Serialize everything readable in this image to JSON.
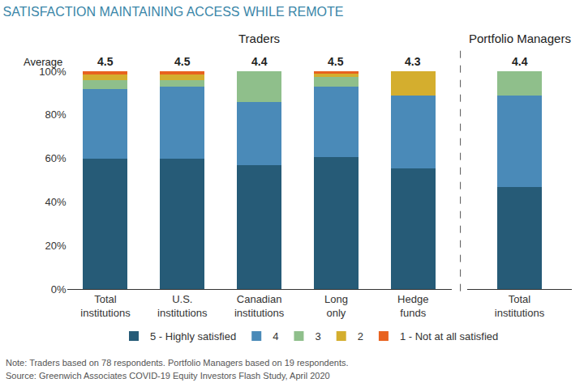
{
  "chart_data": [
    {
      "type": "bar",
      "title": "SATISFACTION MAINTAINING ACCESS WHILE REMOTE",
      "subtitle": "Traders",
      "categories": [
        "Total institutions",
        "U.S. institutions",
        "Canadian institutions",
        "Long only",
        "Hedge funds"
      ],
      "series": [
        {
          "name": "5 - Highly satisfied",
          "color": "#265b77",
          "values": [
            60,
            60,
            57,
            60.5,
            55.5
          ]
        },
        {
          "name": "4",
          "color": "#4a8ab8",
          "values": [
            32,
            33,
            29,
            32.5,
            33.5
          ]
        },
        {
          "name": "3",
          "color": "#8fbf8b",
          "values": [
            4,
            3,
            14,
            4.5,
            0
          ]
        },
        {
          "name": "2",
          "color": "#d4ae2e",
          "values": [
            2.5,
            2.5,
            0,
            1.5,
            11
          ]
        },
        {
          "name": "1 - Not at all satisfied",
          "color": "#e8621f",
          "values": [
            1.5,
            1.5,
            0,
            1,
            0
          ]
        }
      ],
      "averages_label": "Average",
      "averages": [
        4.5,
        4.5,
        4.4,
        4.5,
        4.3
      ],
      "ylim": [
        0,
        100
      ],
      "yticks": [
        {
          "value": 0,
          "label": "0%"
        },
        {
          "value": 20,
          "label": "20%"
        },
        {
          "value": 40,
          "label": "40%"
        },
        {
          "value": 60,
          "label": "60%"
        },
        {
          "value": 80,
          "label": "80%"
        },
        {
          "value": 100,
          "label": "100%"
        }
      ],
      "stacked": true,
      "grid": false,
      "legend": "bottom",
      "notes": [
        "Note: Traders based on 78 respondents. Portfolio Managers based on 19 respondents.",
        "Source: Greenwich Associates COVID-19 Equity Investors Flash Study, April 2020"
      ]
    },
    {
      "type": "bar",
      "subtitle": "Portfolio Managers",
      "categories": [
        "Total institutions"
      ],
      "series": [
        {
          "name": "5 - Highly satisfied",
          "color": "#265b77",
          "values": [
            47
          ]
        },
        {
          "name": "4",
          "color": "#4a8ab8",
          "values": [
            42
          ]
        },
        {
          "name": "3",
          "color": "#8fbf8b",
          "values": [
            11
          ]
        },
        {
          "name": "2",
          "color": "#d4ae2e",
          "values": [
            0
          ]
        },
        {
          "name": "1 - Not at all satisfied",
          "color": "#e8621f",
          "values": [
            0
          ]
        }
      ],
      "averages": [
        4.4
      ],
      "ylim": [
        0,
        100
      ],
      "stacked": true,
      "grid": false,
      "tick_labels": "x"
    }
  ]
}
